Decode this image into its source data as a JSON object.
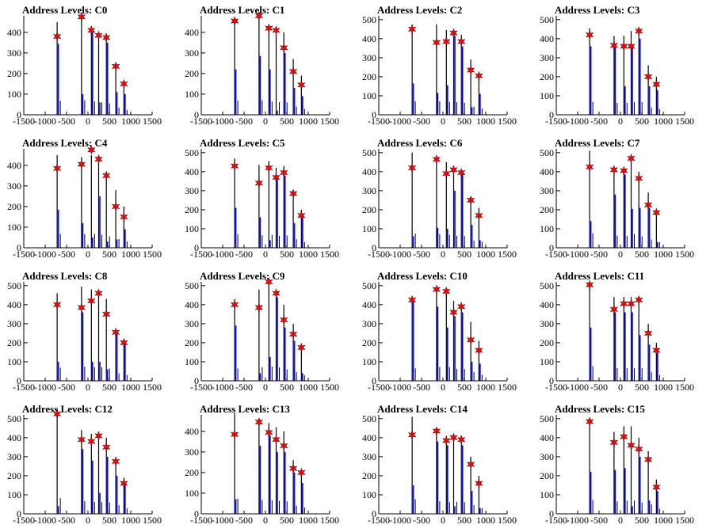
{
  "chart_data": [
    {
      "type": "bar",
      "title": "Address Levels: C0",
      "xlim": [
        -1500,
        1500
      ],
      "ylim": [
        0,
        500
      ],
      "xticks": [
        -1500,
        -1000,
        -500,
        0,
        500,
        1000,
        1500
      ],
      "yticks": [
        0,
        100,
        200,
        300,
        400
      ],
      "x": [
        -720,
        -150,
        80,
        250,
        430,
        650,
        840
      ],
      "black": [
        450,
        470,
        430,
        400,
        370,
        230,
        160
      ],
      "blue": [
        345,
        100,
        410,
        60,
        350,
        110,
        100
      ],
      "markers": [
        380,
        475,
        410,
        385,
        375,
        235,
        150
      ]
    },
    {
      "type": "bar",
      "title": "Address Levels: C1",
      "xlim": [
        -1500,
        1500
      ],
      "ylim": [
        0,
        500
      ],
      "xticks": [
        -1500,
        -1000,
        -500,
        0,
        500,
        1000,
        1500
      ],
      "yticks": [
        0,
        100,
        200,
        300,
        400
      ],
      "x": [
        -720,
        -150,
        80,
        250,
        430,
        650,
        840
      ],
      "black": [
        460,
        470,
        430,
        410,
        400,
        270,
        190
      ],
      "blue": [
        220,
        285,
        220,
        20,
        300,
        130,
        90
      ],
      "markers": [
        455,
        480,
        420,
        410,
        325,
        210,
        145
      ]
    },
    {
      "type": "bar",
      "title": "Address Levels: C2",
      "xlim": [
        -1500,
        1500
      ],
      "ylim": [
        0,
        500
      ],
      "xticks": [
        -1500,
        -1000,
        -500,
        0,
        500,
        1000,
        1500
      ],
      "yticks": [
        0,
        100,
        200,
        300,
        400,
        500
      ],
      "x": [
        -720,
        -150,
        80,
        250,
        430,
        650,
        840
      ],
      "black": [
        475,
        475,
        445,
        440,
        420,
        290,
        220
      ],
      "blue": [
        165,
        115,
        155,
        415,
        360,
        40,
        110
      ],
      "markers": [
        450,
        380,
        385,
        430,
        385,
        235,
        205
      ]
    },
    {
      "type": "bar",
      "title": "Address Levels: C3",
      "xlim": [
        -1500,
        1500
      ],
      "ylim": [
        0,
        500
      ],
      "xticks": [
        -1500,
        -1000,
        -500,
        0,
        500,
        1000,
        1500
      ],
      "yticks": [
        0,
        100,
        200,
        300,
        400,
        500
      ],
      "x": [
        -720,
        -150,
        80,
        250,
        430,
        650,
        840
      ],
      "black": [
        455,
        415,
        415,
        440,
        440,
        260,
        200
      ],
      "blue": [
        360,
        360,
        150,
        355,
        400,
        150,
        130
      ],
      "markers": [
        420,
        365,
        360,
        360,
        440,
        200,
        160
      ]
    },
    {
      "type": "bar",
      "title": "Address Levels: C4",
      "xlim": [
        -1500,
        1500
      ],
      "ylim": [
        0,
        500
      ],
      "xticks": [
        -1500,
        -1000,
        -500,
        0,
        500,
        1000,
        1500
      ],
      "yticks": [
        0,
        100,
        200,
        300,
        400
      ],
      "x": [
        -720,
        -150,
        80,
        250,
        430,
        650,
        840
      ],
      "black": [
        450,
        440,
        450,
        420,
        370,
        280,
        200
      ],
      "blue": [
        185,
        120,
        50,
        250,
        30,
        40,
        90
      ],
      "markers": [
        385,
        405,
        475,
        430,
        350,
        200,
        150
      ]
    },
    {
      "type": "bar",
      "title": "Address Levels: C5",
      "xlim": [
        -1500,
        1500
      ],
      "ylim": [
        0,
        500
      ],
      "xticks": [
        -1500,
        -1000,
        -500,
        0,
        500,
        1000,
        1500
      ],
      "yticks": [
        0,
        100,
        200,
        300,
        400,
        500
      ],
      "x": [
        -720,
        -150,
        80,
        250,
        430,
        650,
        840
      ],
      "black": [
        470,
        435,
        455,
        420,
        430,
        300,
        200
      ],
      "blue": [
        210,
        160,
        40,
        360,
        380,
        130,
        160
      ],
      "markers": [
        430,
        340,
        420,
        370,
        395,
        285,
        170
      ]
    },
    {
      "type": "bar",
      "title": "Address Levels: C6",
      "xlim": [
        -1500,
        1500
      ],
      "ylim": [
        0,
        500
      ],
      "xticks": [
        -1500,
        -1000,
        -500,
        0,
        500,
        1000,
        1500
      ],
      "yticks": [
        0,
        100,
        200,
        300,
        400,
        500
      ],
      "x": [
        -720,
        -150,
        80,
        250,
        430,
        650,
        840
      ],
      "black": [
        500,
        480,
        450,
        420,
        410,
        260,
        210
      ],
      "blue": [
        60,
        105,
        100,
        300,
        400,
        120,
        40
      ],
      "markers": [
        420,
        465,
        390,
        410,
        395,
        250,
        170
      ]
    },
    {
      "type": "bar",
      "title": "Address Levels: C7",
      "xlim": [
        -1500,
        1500
      ],
      "ylim": [
        0,
        500
      ],
      "xticks": [
        -1500,
        -1000,
        -500,
        0,
        500,
        1000,
        1500
      ],
      "yticks": [
        0,
        100,
        200,
        300,
        400,
        500
      ],
      "x": [
        -720,
        -150,
        80,
        250,
        430,
        650,
        840
      ],
      "black": [
        510,
        420,
        415,
        480,
        400,
        290,
        200
      ],
      "blue": [
        140,
        280,
        385,
        205,
        210,
        210,
        30
      ],
      "markers": [
        425,
        410,
        405,
        470,
        365,
        225,
        185
      ]
    },
    {
      "type": "bar",
      "title": "Address Levels: C8",
      "xlim": [
        -1500,
        1500
      ],
      "ylim": [
        0,
        500
      ],
      "xticks": [
        -1500,
        -1000,
        -500,
        0,
        500,
        1000,
        1500
      ],
      "yticks": [
        0,
        100,
        200,
        300,
        400,
        500
      ],
      "x": [
        -720,
        -150,
        80,
        250,
        430,
        650,
        840
      ],
      "black": [
        460,
        495,
        480,
        470,
        430,
        260,
        200
      ],
      "blue": [
        100,
        360,
        100,
        100,
        60,
        260,
        190
      ],
      "markers": [
        400,
        385,
        420,
        460,
        350,
        255,
        200
      ]
    },
    {
      "type": "bar",
      "title": "Address Levels: C9",
      "xlim": [
        -1500,
        1500
      ],
      "ylim": [
        0,
        500
      ],
      "xticks": [
        -1500,
        -1000,
        -500,
        0,
        500,
        1000,
        1500
      ],
      "yticks": [
        0,
        100,
        200,
        300,
        400,
        500
      ],
      "x": [
        -720,
        -150,
        80,
        250,
        430,
        650,
        840
      ],
      "black": [
        430,
        480,
        500,
        460,
        400,
        300,
        190
      ],
      "blue": [
        290,
        40,
        125,
        440,
        280,
        210,
        40
      ],
      "markers": [
        400,
        385,
        520,
        460,
        320,
        245,
        175
      ]
    },
    {
      "type": "bar",
      "title": "Address Levels: C10",
      "xlim": [
        -1500,
        1500
      ],
      "ylim": [
        0,
        500
      ],
      "xticks": [
        -1500,
        -1000,
        -500,
        0,
        500,
        1000,
        1500
      ],
      "yticks": [
        0,
        100,
        200,
        300,
        400,
        500
      ],
      "x": [
        -720,
        -150,
        80,
        250,
        430,
        650,
        840
      ],
      "black": [
        440,
        485,
        480,
        420,
        410,
        310,
        210
      ],
      "blue": [
        420,
        390,
        280,
        340,
        360,
        100,
        90
      ],
      "markers": [
        425,
        480,
        470,
        360,
        390,
        215,
        160
      ]
    },
    {
      "type": "bar",
      "title": "Address Levels: C11",
      "xlim": [
        -1500,
        1500
      ],
      "ylim": [
        0,
        500
      ],
      "xticks": [
        -1500,
        -1000,
        -500,
        0,
        500,
        1000,
        1500
      ],
      "yticks": [
        0,
        100,
        200,
        300,
        400,
        500
      ],
      "x": [
        -720,
        -150,
        80,
        250,
        430,
        650,
        840
      ],
      "black": [
        510,
        440,
        440,
        440,
        440,
        300,
        200
      ],
      "blue": [
        280,
        360,
        360,
        360,
        240,
        190,
        150
      ],
      "markers": [
        505,
        375,
        405,
        405,
        425,
        250,
        160
      ]
    },
    {
      "type": "bar",
      "title": "Address Levels: C12",
      "xlim": [
        -1500,
        1500
      ],
      "ylim": [
        0,
        500
      ],
      "xticks": [
        -1500,
        -1000,
        -500,
        0,
        500,
        1000,
        1500
      ],
      "yticks": [
        0,
        100,
        200,
        300,
        400,
        500
      ],
      "x": [
        -720,
        -150,
        80,
        250,
        430,
        650,
        840
      ],
      "black": [
        550,
        440,
        420,
        410,
        400,
        300,
        190
      ],
      "blue": [
        40,
        340,
        280,
        110,
        300,
        200,
        160
      ],
      "markers": [
        525,
        390,
        380,
        410,
        350,
        275,
        160
      ]
    },
    {
      "type": "bar",
      "title": "Address Levels: C13",
      "xlim": [
        -1500,
        1500
      ],
      "ylim": [
        0,
        500
      ],
      "xticks": [
        -1500,
        -1000,
        -500,
        0,
        500,
        1000,
        1500
      ],
      "yticks": [
        0,
        100,
        200,
        300,
        400
      ],
      "x": [
        -720,
        -150,
        80,
        250,
        430,
        650,
        840
      ],
      "black": [
        490,
        450,
        440,
        420,
        400,
        260,
        200
      ],
      "blue": [
        70,
        330,
        380,
        300,
        300,
        200,
        150
      ],
      "markers": [
        385,
        445,
        395,
        360,
        330,
        220,
        200
      ]
    },
    {
      "type": "bar",
      "title": "Address Levels: C14",
      "xlim": [
        -1500,
        1500
      ],
      "ylim": [
        0,
        500
      ],
      "xticks": [
        -1500,
        -1000,
        -500,
        0,
        500,
        1000,
        1500
      ],
      "yticks": [
        0,
        100,
        200,
        300,
        400,
        500
      ],
      "x": [
        -720,
        -150,
        80,
        250,
        430,
        650,
        840
      ],
      "black": [
        510,
        440,
        410,
        420,
        410,
        300,
        200
      ],
      "blue": [
        150,
        380,
        360,
        40,
        360,
        120,
        30
      ],
      "markers": [
        415,
        435,
        385,
        400,
        390,
        260,
        160
      ]
    },
    {
      "type": "bar",
      "title": "Address Levels: C15",
      "xlim": [
        -1500,
        1500
      ],
      "ylim": [
        0,
        500
      ],
      "xticks": [
        -1500,
        -1000,
        -500,
        0,
        500,
        1000,
        1500
      ],
      "yticks": [
        0,
        100,
        200,
        300,
        400,
        500
      ],
      "x": [
        -720,
        -150,
        80,
        250,
        430,
        650,
        840
      ],
      "black": [
        490,
        430,
        460,
        460,
        400,
        330,
        180
      ],
      "blue": [
        220,
        230,
        240,
        40,
        300,
        70,
        120
      ],
      "markers": [
        485,
        375,
        405,
        360,
        340,
        285,
        140
      ]
    }
  ]
}
